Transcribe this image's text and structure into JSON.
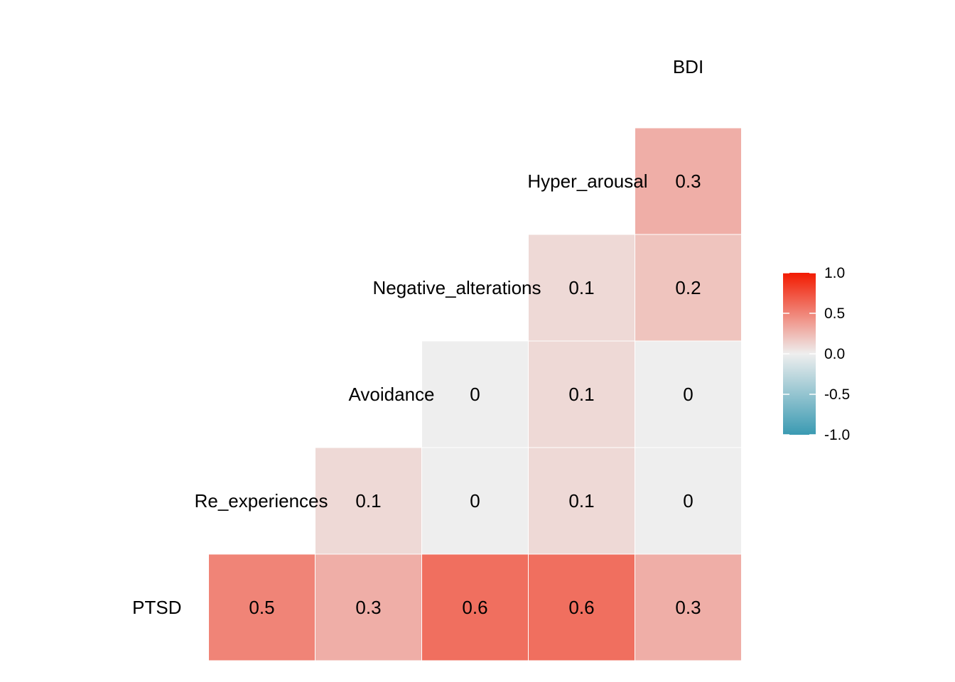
{
  "chart_data": {
    "type": "heatmap",
    "title": "",
    "variables": [
      "PTSD",
      "Re_experiences",
      "Avoidance",
      "Negative_alterations",
      "Hyper_arousal",
      "BDI"
    ],
    "cells": [
      {
        "row": "PTSD",
        "col": "Re_experiences",
        "value": 0.5
      },
      {
        "row": "PTSD",
        "col": "Avoidance",
        "value": 0.3
      },
      {
        "row": "PTSD",
        "col": "Negative_alterations",
        "value": 0.6
      },
      {
        "row": "PTSD",
        "col": "Hyper_arousal",
        "value": 0.6
      },
      {
        "row": "PTSD",
        "col": "BDI",
        "value": 0.3
      },
      {
        "row": "Re_experiences",
        "col": "Avoidance",
        "value": 0.1
      },
      {
        "row": "Re_experiences",
        "col": "Negative_alterations",
        "value": 0
      },
      {
        "row": "Re_experiences",
        "col": "Hyper_arousal",
        "value": 0.1
      },
      {
        "row": "Re_experiences",
        "col": "BDI",
        "value": 0
      },
      {
        "row": "Avoidance",
        "col": "Negative_alterations",
        "value": 0
      },
      {
        "row": "Avoidance",
        "col": "Hyper_arousal",
        "value": 0.1
      },
      {
        "row": "Avoidance",
        "col": "BDI",
        "value": 0
      },
      {
        "row": "Negative_alterations",
        "col": "Hyper_arousal",
        "value": 0.1
      },
      {
        "row": "Negative_alterations",
        "col": "BDI",
        "value": 0.2
      },
      {
        "row": "Hyper_arousal",
        "col": "BDI",
        "value": 0.3
      }
    ],
    "color_scale": {
      "low": "#3A9AB2",
      "mid": "#EEEEEE",
      "high": "#F21A00",
      "range": [
        -1,
        1
      ]
    },
    "legend": {
      "position": "right",
      "ticks": [
        "1.0",
        "0.5",
        "0.0",
        "-0.5",
        "-1.0"
      ]
    },
    "grid": false
  }
}
